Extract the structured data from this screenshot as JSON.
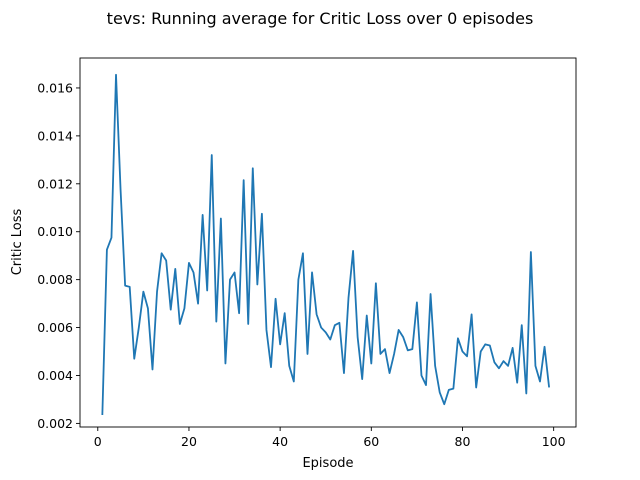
{
  "chart_data": {
    "type": "line",
    "title": "tevs: Running average for Critic Loss over 0 episodes",
    "xlabel": "Episode",
    "ylabel": "Critic Loss",
    "xlim": [
      -3.9,
      104.9
    ],
    "ylim": [
      0.00185,
      0.01725
    ],
    "xticks": [
      0,
      20,
      40,
      60,
      80,
      100
    ],
    "xtick_labels": [
      "0",
      "20",
      "40",
      "60",
      "80",
      "100"
    ],
    "yticks": [
      0.002,
      0.004,
      0.006,
      0.008,
      0.01,
      0.012,
      0.014,
      0.016
    ],
    "ytick_labels": [
      "0.002",
      "0.004",
      "0.006",
      "0.008",
      "0.010",
      "0.012",
      "0.014",
      "0.016"
    ],
    "grid": false,
    "series": [
      {
        "color": "#1f77b4",
        "x": [
          1,
          2,
          3,
          4,
          5,
          6,
          7,
          8,
          9,
          10,
          11,
          12,
          13,
          14,
          15,
          16,
          17,
          18,
          19,
          20,
          21,
          22,
          23,
          24,
          25,
          26,
          27,
          28,
          29,
          30,
          31,
          32,
          33,
          34,
          35,
          36,
          37,
          38,
          39,
          40,
          41,
          42,
          43,
          44,
          45,
          46,
          47,
          48,
          49,
          50,
          51,
          52,
          53,
          54,
          55,
          56,
          57,
          58,
          59,
          60,
          61,
          62,
          63,
          64,
          65,
          66,
          67,
          68,
          69,
          70,
          71,
          72,
          73,
          74,
          75,
          76,
          77,
          78,
          79,
          80,
          81,
          82,
          83,
          84,
          85,
          86,
          87,
          88,
          89,
          90,
          91,
          92,
          93,
          94,
          95,
          96,
          97,
          98,
          99
        ],
        "y": [
          0.00235,
          0.00925,
          0.00975,
          0.01655,
          0.01175,
          0.00775,
          0.0077,
          0.0047,
          0.006,
          0.0075,
          0.0068,
          0.00425,
          0.0075,
          0.0091,
          0.0088,
          0.00675,
          0.00845,
          0.00615,
          0.0068,
          0.0087,
          0.0083,
          0.007,
          0.0107,
          0.00755,
          0.0132,
          0.00625,
          0.01055,
          0.0045,
          0.008,
          0.0083,
          0.0066,
          0.01215,
          0.00615,
          0.01265,
          0.0078,
          0.01075,
          0.0059,
          0.00435,
          0.0072,
          0.0053,
          0.0066,
          0.0044,
          0.00375,
          0.008,
          0.0091,
          0.0049,
          0.0083,
          0.00655,
          0.006,
          0.0058,
          0.0055,
          0.0061,
          0.0062,
          0.0041,
          0.00725,
          0.0092,
          0.0056,
          0.00385,
          0.0065,
          0.0045,
          0.00785,
          0.0049,
          0.0051,
          0.0041,
          0.0049,
          0.0059,
          0.0056,
          0.00505,
          0.0051,
          0.00705,
          0.004,
          0.0036,
          0.0074,
          0.0044,
          0.0033,
          0.0028,
          0.0034,
          0.00345,
          0.00555,
          0.005,
          0.0048,
          0.00655,
          0.0035,
          0.005,
          0.0053,
          0.00525,
          0.00455,
          0.0043,
          0.0046,
          0.0044,
          0.00515,
          0.0037,
          0.0061,
          0.00325,
          0.00915,
          0.0044,
          0.00375,
          0.0052,
          0.0035
        ]
      }
    ]
  }
}
